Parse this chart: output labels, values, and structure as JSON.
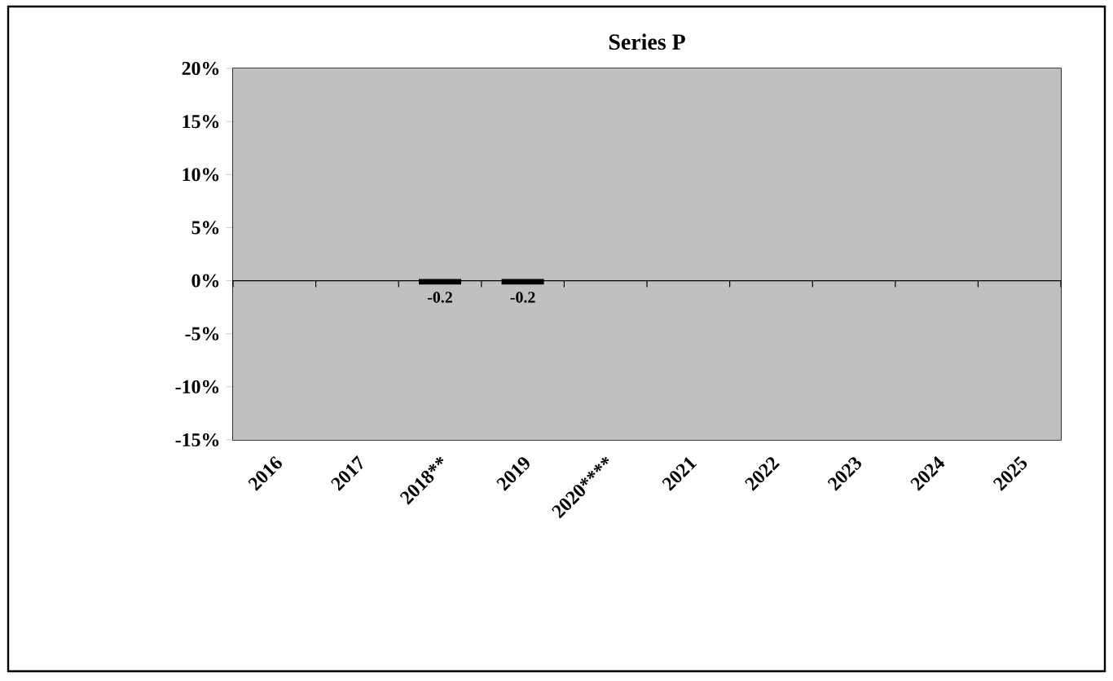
{
  "chart_data": {
    "type": "bar",
    "title": "Series P",
    "categories": [
      "2016",
      "2017",
      "2018**",
      "2019",
      "2020****",
      "2021",
      "2022",
      "2023",
      "2024",
      "2025"
    ],
    "values": [
      null,
      null,
      -0.2,
      -0.2,
      null,
      null,
      null,
      null,
      null,
      null
    ],
    "color": "#000000",
    "ylim": [
      -15,
      20
    ],
    "yticks": [
      {
        "value": -15,
        "label": "-15%"
      },
      {
        "value": -10,
        "label": "-10%"
      },
      {
        "value": -5,
        "label": "-5%"
      },
      {
        "value": 0,
        "label": "0%"
      },
      {
        "value": 5,
        "label": "5%"
      },
      {
        "value": 10,
        "label": "10%"
      },
      {
        "value": 15,
        "label": "15%"
      },
      {
        "value": 20,
        "label": "20%"
      }
    ],
    "data_labels": true
  }
}
